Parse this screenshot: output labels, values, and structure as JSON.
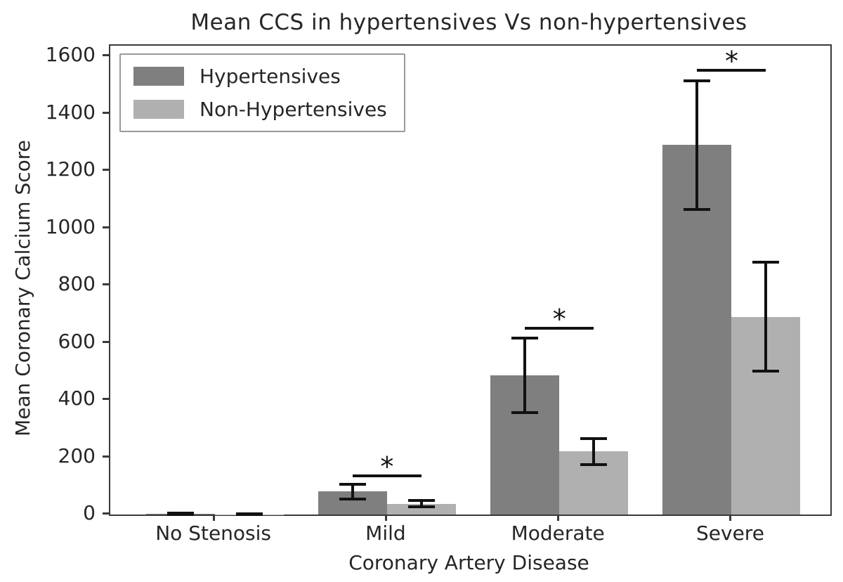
{
  "chart_data": {
    "type": "bar",
    "title": "Mean CCS in hypertensives Vs non-hypertensives",
    "xlabel": "Coronary Artery Disease",
    "ylabel": "Mean Coronary Calcium Score",
    "categories": [
      "No Stenosis",
      "Mild",
      "Moderate",
      "Severe"
    ],
    "series": [
      {
        "name": "Hypertensives",
        "color": "#7f7f7f",
        "values": [
          2,
          80,
          485,
          1290
        ],
        "errors": [
          2,
          25,
          130,
          225
        ]
      },
      {
        "name": "Non-Hypertensives",
        "color": "#b0b0b0",
        "values": [
          1,
          38,
          220,
          690
        ],
        "errors": [
          1,
          12,
          45,
          190
        ]
      }
    ],
    "significance": [
      {
        "category": "Mild",
        "y": 140,
        "label": "*"
      },
      {
        "category": "Moderate",
        "y": 655,
        "label": "*"
      },
      {
        "category": "Severe",
        "y": 1555,
        "label": "*"
      }
    ],
    "ylim": [
      0,
      1600
    ],
    "yticks": [
      0,
      200,
      400,
      600,
      800,
      1000,
      1200,
      1400,
      1600
    ],
    "legend_position": "upper left",
    "grid": false,
    "error_bar_color": "#111111",
    "axis_color": "#3a3a3a"
  }
}
